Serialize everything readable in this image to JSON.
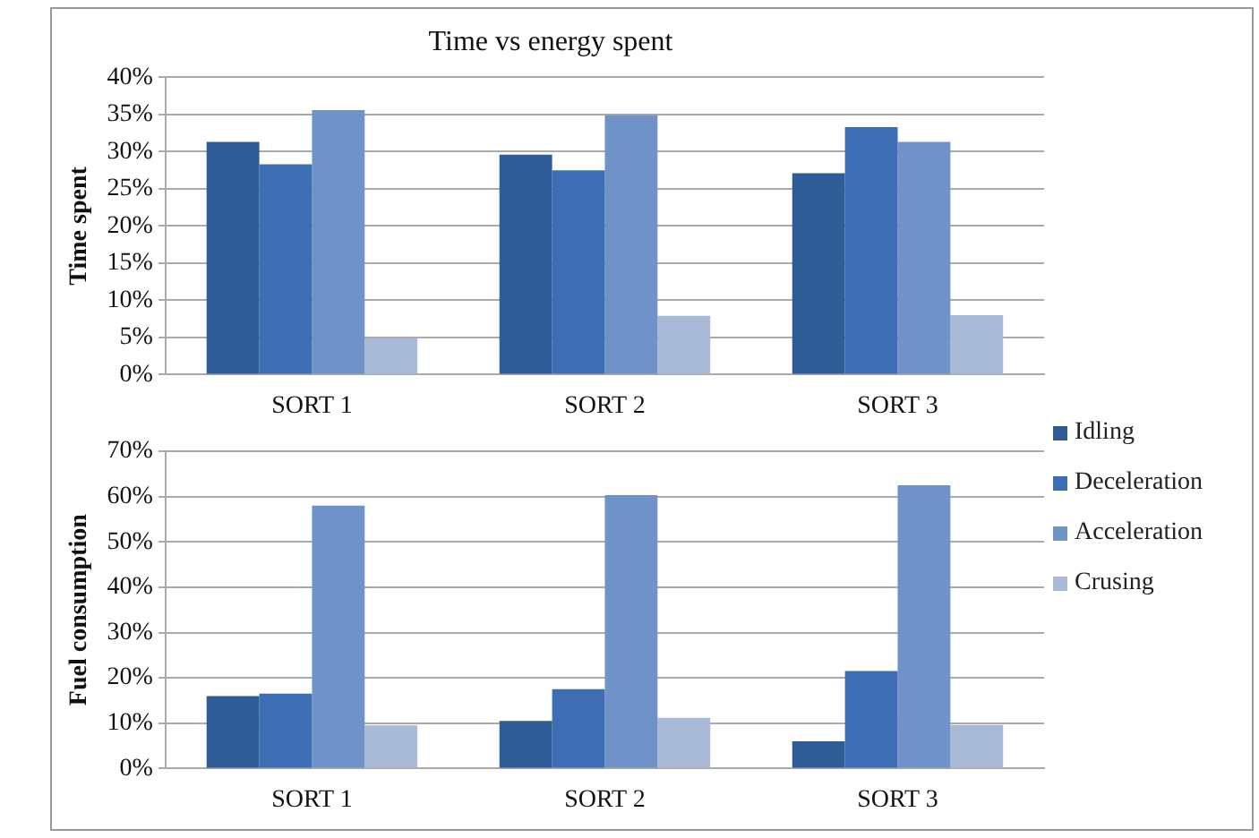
{
  "chart_data": [
    {
      "type": "bar",
      "title": "Time vs energy spent",
      "ylabel": "Time spent",
      "categories": [
        "SORT 1",
        "SORT 2",
        "SORT 3"
      ],
      "series": [
        {
          "name": "Idling",
          "color": "#2e5c96",
          "values": [
            31.3,
            29.6,
            27.1
          ]
        },
        {
          "name": "Deceleration",
          "color": "#3d6eb4",
          "values": [
            28.3,
            27.5,
            33.3
          ]
        },
        {
          "name": "Acceleration",
          "color": "#6f92c8",
          "values": [
            35.6,
            34.9,
            31.3
          ]
        },
        {
          "name": "Crusing",
          "color": "#a9b9d8",
          "values": [
            4.9,
            7.9,
            8.0
          ]
        }
      ],
      "ylim": [
        0,
        40
      ],
      "yticks": [
        {
          "value": 0,
          "label": "0%"
        },
        {
          "value": 5,
          "label": "5%"
        },
        {
          "value": 10,
          "label": "10%"
        },
        {
          "value": 15,
          "label": "15%"
        },
        {
          "value": 20,
          "label": "20%"
        },
        {
          "value": 25,
          "label": "25%"
        },
        {
          "value": 30,
          "label": "30%"
        },
        {
          "value": 35,
          "label": "35%"
        },
        {
          "value": 40,
          "label": "40%"
        }
      ],
      "grid": "y",
      "legend": "right"
    },
    {
      "type": "bar",
      "ylabel": "Fuel consumption",
      "categories": [
        "SORT 1",
        "SORT 2",
        "SORT 3"
      ],
      "series": [
        {
          "color": "#2e5c96",
          "values": [
            16,
            10.5,
            6
          ]
        },
        {
          "color": "#3d6eb4",
          "values": [
            16.5,
            17.5,
            21.5
          ]
        },
        {
          "color": "#6f92c8",
          "values": [
            58,
            60.3,
            62.5
          ]
        },
        {
          "color": "#a9b9d8",
          "values": [
            9.5,
            11.2,
            9.6
          ]
        }
      ],
      "ylim": [
        0,
        70
      ],
      "yticks": [
        {
          "value": 0,
          "label": "0%"
        },
        {
          "value": 10,
          "label": "10%"
        },
        {
          "value": 20,
          "label": "20%"
        },
        {
          "value": 30,
          "label": "30%"
        },
        {
          "value": 40,
          "label": "40%"
        },
        {
          "value": 50,
          "label": "50%"
        },
        {
          "value": 60,
          "label": "60%"
        },
        {
          "value": 70,
          "label": "70%"
        }
      ],
      "grid": "y"
    }
  ]
}
